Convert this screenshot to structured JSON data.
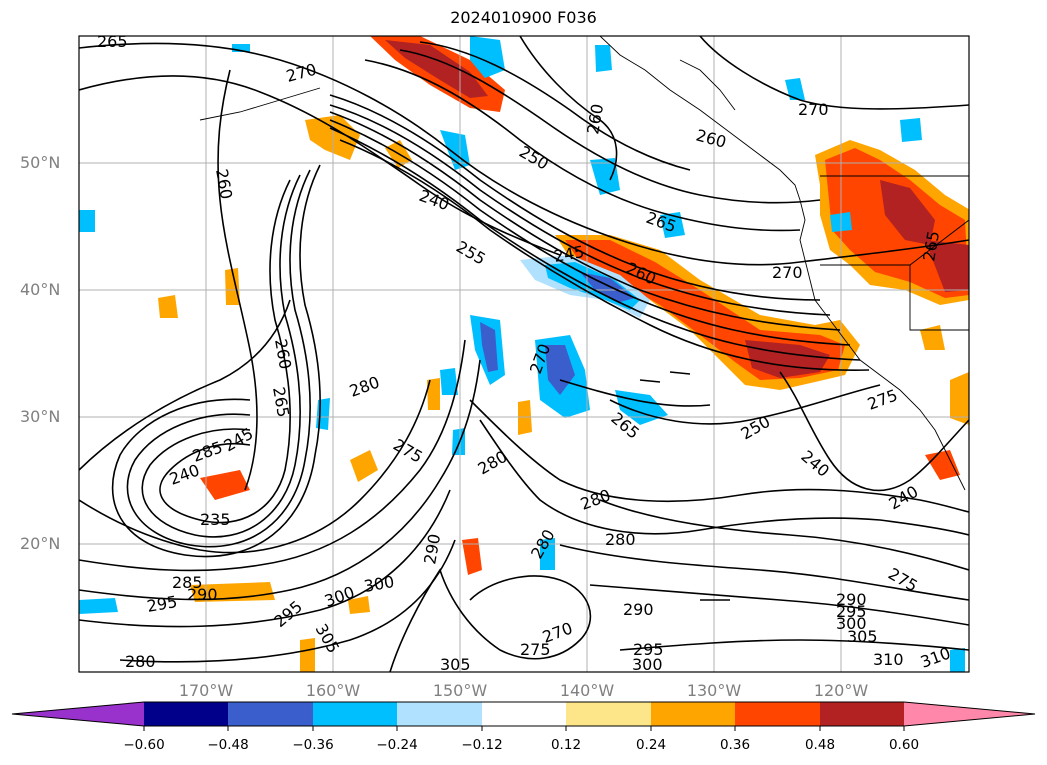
{
  "title": "2024010900 F036",
  "lat_labels": [
    "50°N",
    "40°N",
    "30°N",
    "20°N"
  ],
  "lon_labels": [
    "170°W",
    "160°W",
    "150°W",
    "140°W",
    "130°W",
    "120°W"
  ],
  "colorbar": {
    "ticks": [
      "−0.60",
      "−0.48",
      "−0.36",
      "−0.24",
      "−0.12",
      "0.12",
      "0.24",
      "0.36",
      "0.48",
      "0.60"
    ],
    "colors": [
      "#9932cc",
      "#00008b",
      "#3a5fcd",
      "#00bfff",
      "#b0e2ff",
      "#ffffff",
      "#fde68a",
      "#ffa500",
      "#ff4500",
      "#b22222",
      "#ff88aa"
    ]
  },
  "contour_labels": [
    "265",
    "270",
    "250",
    "260",
    "260",
    "270",
    "260",
    "240",
    "265",
    "245",
    "255",
    "260",
    "270",
    "265",
    "260",
    "265",
    "280",
    "275",
    "285",
    "245",
    "240",
    "235",
    "270",
    "280",
    "280",
    "280",
    "290",
    "280",
    "270",
    "275",
    "285",
    "290",
    "295",
    "300",
    "300",
    "305",
    "305",
    "280",
    "295",
    "290",
    "295",
    "300",
    "290",
    "295",
    "300",
    "305",
    "310",
    "310",
    "275",
    "240",
    "240",
    "265",
    "250",
    "275"
  ]
}
